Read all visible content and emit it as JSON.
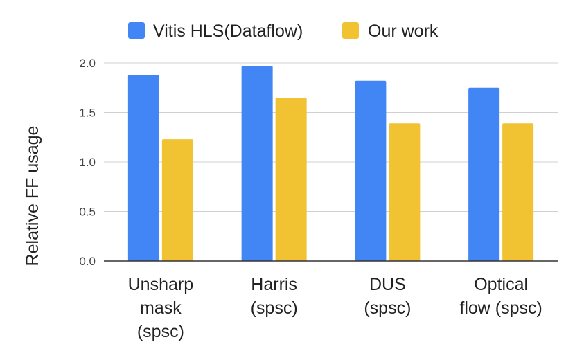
{
  "chart_data": {
    "type": "bar",
    "title": "",
    "xlabel": "",
    "ylabel": "Relative FF usage",
    "ylim": [
      0,
      2.0
    ],
    "yticks": [
      "0.0",
      "0.5",
      "1.0",
      "1.5",
      "2.0"
    ],
    "grid": true,
    "legend_position": "top",
    "categories": [
      [
        "Unsharp",
        "mask",
        "(spsc)"
      ],
      [
        "Harris",
        "(spsc)"
      ],
      [
        "DUS",
        "(spsc)"
      ],
      [
        "Optical",
        "flow (spsc)"
      ]
    ],
    "series": [
      {
        "name": "Vitis HLS(Dataflow)",
        "color": "#4285F4",
        "values": [
          1.88,
          1.97,
          1.82,
          1.75
        ]
      },
      {
        "name": "Our work",
        "color": "#F1C232",
        "values": [
          1.23,
          1.65,
          1.39,
          1.39
        ]
      }
    ]
  }
}
